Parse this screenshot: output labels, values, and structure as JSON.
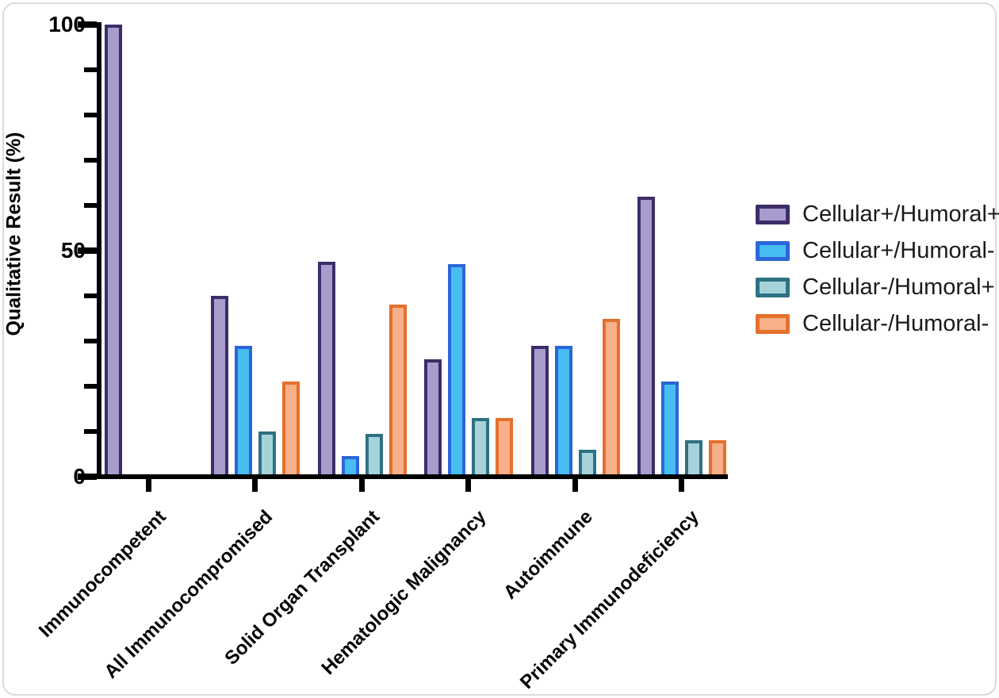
{
  "chart_data": {
    "type": "bar",
    "title": "",
    "xlabel": "",
    "ylabel": "Qualitative Result (%)",
    "ylim": [
      0,
      100
    ],
    "y_major_ticks": [
      0,
      50,
      100
    ],
    "y_minor_tick_step": 10,
    "grid": false,
    "legend_position": "right",
    "categories": [
      "Immunocompetent",
      "All Immunocompromised",
      "Solid Organ Transplant",
      "Hematologic Malignancy",
      "Autoimmune",
      "Primary Immunodeficiency"
    ],
    "series": [
      {
        "name": "Cellular+/Humoral+",
        "border_color": "#3c2d69",
        "fill_color": "#a89ccd",
        "values": [
          100,
          40,
          47.5,
          26,
          29,
          62
        ]
      },
      {
        "name": "Cellular+/Humoral-",
        "border_color": "#2b66d9",
        "fill_color": "#47bdf2",
        "values": [
          0,
          29,
          4.5,
          47,
          29,
          21
        ]
      },
      {
        "name": "Cellular-/Humoral+",
        "border_color": "#2e7183",
        "fill_color": "#a6d3da",
        "values": [
          0,
          10,
          9.5,
          13,
          6,
          8
        ]
      },
      {
        "name": "Cellular-/Humoral-",
        "border_color": "#e5702c",
        "fill_color": "#f7b08a",
        "values": [
          0,
          21,
          38,
          13,
          35,
          8
        ]
      }
    ]
  }
}
